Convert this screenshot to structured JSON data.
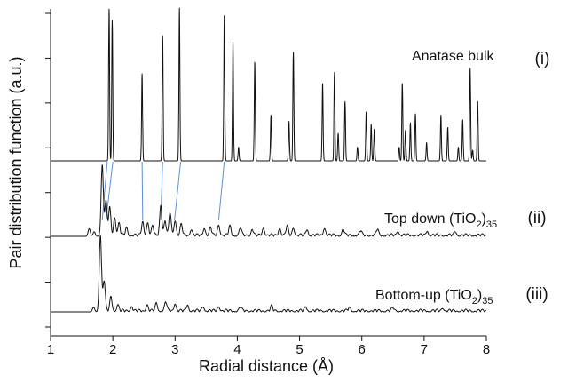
{
  "chart_data": {
    "type": "line",
    "xlabel": "Radial distance (Å)",
    "ylabel": "Pair distribution function (a.u.)",
    "xlim": [
      1,
      8
    ],
    "x_ticks": [
      1,
      2,
      3,
      4,
      5,
      6,
      7,
      8
    ],
    "x_tick_labels": [
      "1",
      "2",
      "3",
      "4",
      "5",
      "6",
      "7",
      "8"
    ],
    "y_ticks_labeled": false,
    "y_tick_count": 8,
    "grid": false,
    "stacked_offset_traces": true,
    "series": [
      {
        "label": "Anatase bulk",
        "tag": "(i)",
        "x_start": 1.0,
        "x_end": 8.0,
        "peaks": [
          {
            "x": 1.94,
            "h": 1.0
          },
          {
            "x": 1.99,
            "h": 0.92
          },
          {
            "x": 2.47,
            "h": 0.57
          },
          {
            "x": 2.8,
            "h": 0.82
          },
          {
            "x": 3.07,
            "h": 1.0
          },
          {
            "x": 3.79,
            "h": 0.95
          },
          {
            "x": 3.93,
            "h": 0.78
          },
          {
            "x": 4.02,
            "h": 0.09
          },
          {
            "x": 4.28,
            "h": 0.65
          },
          {
            "x": 4.54,
            "h": 0.3
          },
          {
            "x": 4.83,
            "h": 0.26
          },
          {
            "x": 4.9,
            "h": 0.71
          },
          {
            "x": 5.37,
            "h": 0.51
          },
          {
            "x": 5.56,
            "h": 0.58
          },
          {
            "x": 5.62,
            "h": 0.18
          },
          {
            "x": 5.73,
            "h": 0.39
          },
          {
            "x": 5.93,
            "h": 0.09
          },
          {
            "x": 6.07,
            "h": 0.32
          },
          {
            "x": 6.15,
            "h": 0.24
          },
          {
            "x": 6.2,
            "h": 0.21
          },
          {
            "x": 6.6,
            "h": 0.09
          },
          {
            "x": 6.65,
            "h": 0.51
          },
          {
            "x": 6.7,
            "h": 0.2
          },
          {
            "x": 6.78,
            "h": 0.25
          },
          {
            "x": 6.86,
            "h": 0.31
          },
          {
            "x": 7.04,
            "h": 0.12
          },
          {
            "x": 7.27,
            "h": 0.3
          },
          {
            "x": 7.38,
            "h": 0.22
          },
          {
            "x": 7.55,
            "h": 0.09
          },
          {
            "x": 7.62,
            "h": 0.27
          },
          {
            "x": 7.74,
            "h": 0.61
          },
          {
            "x": 7.78,
            "h": 0.07
          },
          {
            "x": 7.86,
            "h": 0.39
          }
        ]
      },
      {
        "label": "Top down (TiO",
        "label_sub": "2",
        "label_post": ")",
        "label_subscript_end": "35",
        "tag": "(ii)",
        "x_start": 1.0,
        "x_end": 8.0,
        "peaks": [
          {
            "x": 1.62,
            "h": 0.05
          },
          {
            "x": 1.7,
            "h": 0.03
          },
          {
            "x": 1.83,
            "h": 0.46
          },
          {
            "x": 1.89,
            "h": 0.22
          },
          {
            "x": 1.95,
            "h": 0.18
          },
          {
            "x": 2.03,
            "h": 0.12
          },
          {
            "x": 2.1,
            "h": 0.08
          },
          {
            "x": 2.22,
            "h": 0.05
          },
          {
            "x": 2.48,
            "h": 0.09
          },
          {
            "x": 2.56,
            "h": 0.08
          },
          {
            "x": 2.64,
            "h": 0.06
          },
          {
            "x": 2.77,
            "h": 0.2
          },
          {
            "x": 2.84,
            "h": 0.09
          },
          {
            "x": 2.92,
            "h": 0.15
          },
          {
            "x": 3.0,
            "h": 0.1
          },
          {
            "x": 3.1,
            "h": 0.07
          },
          {
            "x": 3.26,
            "h": 0.04
          },
          {
            "x": 3.47,
            "h": 0.05
          },
          {
            "x": 3.57,
            "h": 0.05
          },
          {
            "x": 3.7,
            "h": 0.07
          },
          {
            "x": 3.88,
            "h": 0.06
          },
          {
            "x": 4.05,
            "h": 0.05
          },
          {
            "x": 4.24,
            "h": 0.04
          },
          {
            "x": 4.42,
            "h": 0.05
          },
          {
            "x": 4.68,
            "h": 0.05
          },
          {
            "x": 4.8,
            "h": 0.06
          },
          {
            "x": 4.9,
            "h": 0.05
          },
          {
            "x": 5.12,
            "h": 0.04
          },
          {
            "x": 5.4,
            "h": 0.05
          },
          {
            "x": 5.7,
            "h": 0.04
          },
          {
            "x": 5.98,
            "h": 0.03
          },
          {
            "x": 6.25,
            "h": 0.04
          },
          {
            "x": 6.58,
            "h": 0.03
          },
          {
            "x": 7.05,
            "h": 0.03
          },
          {
            "x": 7.5,
            "h": 0.025
          }
        ]
      },
      {
        "label": "Bottom-up (TiO",
        "label_sub": "2",
        "label_post": ")",
        "label_subscript_end": "35",
        "tag": "(iii)",
        "x_start": 1.0,
        "x_end": 8.0,
        "peaks": [
          {
            "x": 1.69,
            "h": 0.03
          },
          {
            "x": 1.8,
            "h": 0.5
          },
          {
            "x": 1.86,
            "h": 0.2
          },
          {
            "x": 1.97,
            "h": 0.09
          },
          {
            "x": 2.08,
            "h": 0.04
          },
          {
            "x": 2.3,
            "h": 0.03
          },
          {
            "x": 2.55,
            "h": 0.04
          },
          {
            "x": 2.7,
            "h": 0.05
          },
          {
            "x": 2.85,
            "h": 0.06
          },
          {
            "x": 3.0,
            "h": 0.05
          },
          {
            "x": 3.2,
            "h": 0.04
          },
          {
            "x": 3.45,
            "h": 0.03
          },
          {
            "x": 3.7,
            "h": 0.03
          },
          {
            "x": 4.05,
            "h": 0.025
          },
          {
            "x": 4.55,
            "h": 0.03
          },
          {
            "x": 5.1,
            "h": 0.025
          },
          {
            "x": 5.8,
            "h": 0.02
          },
          {
            "x": 6.5,
            "h": 0.02
          },
          {
            "x": 7.3,
            "h": 0.02
          }
        ]
      }
    ],
    "guide_lines": [
      {
        "from_x": 1.91,
        "to_x": 1.83
      },
      {
        "from_x": 2.0,
        "to_x": 1.89
      },
      {
        "from_x": 2.47,
        "to_x": 2.48
      },
      {
        "from_x": 2.8,
        "to_x": 2.77
      },
      {
        "from_x": 3.09,
        "to_x": 2.99
      },
      {
        "from_x": 3.79,
        "to_x": 3.7
      }
    ]
  }
}
